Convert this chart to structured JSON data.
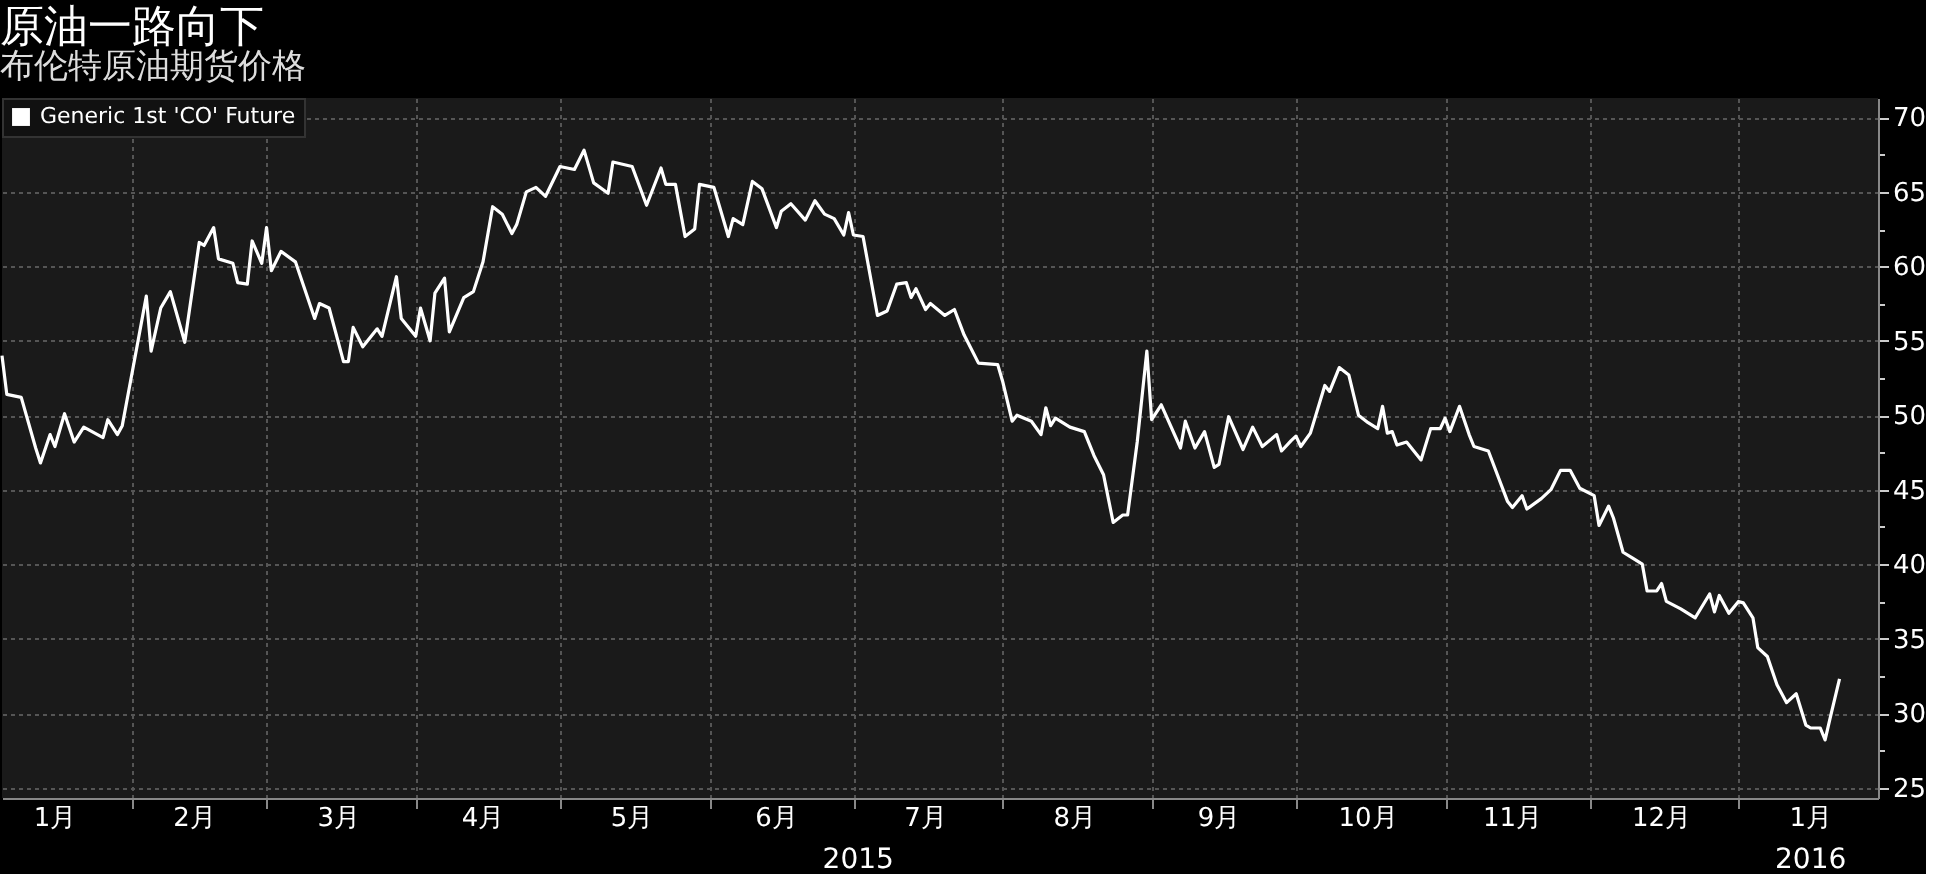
{
  "chart_data": {
    "type": "line",
    "title": "原油一路向下",
    "subtitle": "布伦特原油期货价格",
    "xlim": [
      "2015-01-05",
      "2016-01-30"
    ],
    "xticks": [
      {
        "value": "2015-02-01",
        "label": null
      },
      {
        "value": "2015-03-01",
        "label": null
      },
      {
        "value": "2015-04-01",
        "label": null
      },
      {
        "value": "2015-05-01",
        "label": null
      },
      {
        "value": "2015-06-01",
        "label": null
      },
      {
        "value": "2015-07-01",
        "label": null
      },
      {
        "value": "2015-08-01",
        "label": null
      },
      {
        "value": "2015-09-01",
        "label": null
      },
      {
        "value": "2015-10-01",
        "label": null
      },
      {
        "value": "2015-11-01",
        "label": null
      },
      {
        "value": "2015-12-01",
        "label": null
      },
      {
        "value": "2016-01-01",
        "label": null
      },
      {
        "value": "2015-01-16",
        "label": "1月"
      },
      {
        "value": "2015-02-14",
        "label": "2月"
      },
      {
        "value": "2015-03-16",
        "label": "3月"
      },
      {
        "value": "2015-04-15",
        "label": "4月"
      },
      {
        "value": "2015-05-16",
        "label": "5月"
      },
      {
        "value": "2015-06-15",
        "label": "6月"
      },
      {
        "value": "2015-07-16",
        "label": "7月"
      },
      {
        "value": "2015-08-16",
        "label": "8月"
      },
      {
        "value": "2015-09-15",
        "label": "9月"
      },
      {
        "value": "2015-10-16",
        "label": "10月"
      },
      {
        "value": "2015-11-15",
        "label": "11月"
      },
      {
        "value": "2015-12-16",
        "label": "12月"
      },
      {
        "value": "2016-01-16",
        "label": "1月"
      }
    ],
    "ylim": [
      24.3,
      71.3
    ],
    "yticks": [
      25,
      {
        "value": 27.5,
        "label": null
      },
      30,
      {
        "value": 32.5,
        "label": null
      },
      35,
      {
        "value": 37.5,
        "label": null
      },
      40,
      {
        "value": 42.5,
        "label": null
      },
      45,
      {
        "value": 47.5,
        "label": null
      },
      50,
      {
        "value": 52.5,
        "label": null
      },
      55,
      {
        "value": 57.5,
        "label": null
      },
      60,
      {
        "value": 62.5,
        "label": null
      },
      65,
      {
        "value": 67.5,
        "label": null
      },
      70
    ],
    "grid": true,
    "legend": "top left",
    "annotations": [
      "2015",
      "2016"
    ],
    "series": [
      {
        "name": "Generic 1st 'CO' Future",
        "color": "#ffffff",
        "x": [
          "2015-01-05",
          "2015-01-06",
          "2015-01-09",
          "2015-01-12",
          "2015-01-13",
          "2015-01-15",
          "2015-01-16",
          "2015-01-18",
          "2015-01-20",
          "2015-01-22",
          "2015-01-26",
          "2015-01-27",
          "2015-01-29",
          "2015-01-30",
          "2015-02-02",
          "2015-02-04",
          "2015-02-05",
          "2015-02-07",
          "2015-02-09",
          "2015-02-12",
          "2015-02-15",
          "2015-02-16",
          "2015-02-18",
          "2015-02-19",
          "2015-02-22",
          "2015-02-23",
          "2015-02-25",
          "2015-02-26",
          "2015-02-28",
          "2015-03-01",
          "2015-03-02",
          "2015-03-04",
          "2015-03-07",
          "2015-03-11",
          "2015-03-12",
          "2015-03-14",
          "2015-03-17",
          "2015-03-18",
          "2015-03-19",
          "2015-03-21",
          "2015-03-24",
          "2015-03-25",
          "2015-03-28",
          "2015-03-29",
          "2015-04-01",
          "2015-04-02",
          "2015-04-04",
          "2015-04-05",
          "2015-04-07",
          "2015-04-08",
          "2015-04-11",
          "2015-04-13",
          "2015-04-15",
          "2015-04-17",
          "2015-04-19",
          "2015-04-21",
          "2015-04-22",
          "2015-04-24",
          "2015-04-26",
          "2015-04-28",
          "2015-05-01",
          "2015-05-04",
          "2015-05-06",
          "2015-05-08",
          "2015-05-11",
          "2015-05-12",
          "2015-05-16",
          "2015-05-19",
          "2015-05-22",
          "2015-05-23",
          "2015-05-25",
          "2015-05-27",
          "2015-05-29",
          "2015-05-30",
          "2015-06-02",
          "2015-06-05",
          "2015-06-06",
          "2015-06-08",
          "2015-06-10",
          "2015-06-12",
          "2015-06-15",
          "2015-06-16",
          "2015-06-18",
          "2015-06-21",
          "2015-06-23",
          "2015-06-25",
          "2015-06-27",
          "2015-06-29",
          "2015-06-30",
          "2015-07-01",
          "2015-07-03",
          "2015-07-06",
          "2015-07-08",
          "2015-07-10",
          "2015-07-12",
          "2015-07-13",
          "2015-07-14",
          "2015-07-16",
          "2015-07-17",
          "2015-07-20",
          "2015-07-22",
          "2015-07-24",
          "2015-07-27",
          "2015-07-31",
          "2015-08-01",
          "2015-08-03",
          "2015-08-04",
          "2015-08-07",
          "2015-08-09",
          "2015-08-10",
          "2015-08-11",
          "2015-08-12",
          "2015-08-15",
          "2015-08-18",
          "2015-08-20",
          "2015-08-22",
          "2015-08-24",
          "2015-08-26",
          "2015-08-27",
          "2015-08-29",
          "2015-08-31",
          "2015-09-01",
          "2015-09-03",
          "2015-09-07",
          "2015-09-08",
          "2015-09-10",
          "2015-09-12",
          "2015-09-14",
          "2015-09-15",
          "2015-09-17",
          "2015-09-20",
          "2015-09-22",
          "2015-09-24",
          "2015-09-27",
          "2015-09-28",
          "2015-09-30",
          "2015-10-01",
          "2015-10-02",
          "2015-10-04",
          "2015-10-07",
          "2015-10-08",
          "2015-10-10",
          "2015-10-12",
          "2015-10-14",
          "2015-10-16",
          "2015-10-18",
          "2015-10-19",
          "2015-10-20",
          "2015-10-21",
          "2015-10-22",
          "2015-10-24",
          "2015-10-27",
          "2015-10-29",
          "2015-10-31",
          "2015-11-01",
          "2015-11-02",
          "2015-11-04",
          "2015-11-06",
          "2015-11-07",
          "2015-11-10",
          "2015-11-14",
          "2015-11-15",
          "2015-11-17",
          "2015-11-18",
          "2015-11-21",
          "2015-11-23",
          "2015-11-25",
          "2015-11-27",
          "2015-11-29",
          "2015-12-02",
          "2015-12-03",
          "2015-12-05",
          "2015-12-06",
          "2015-12-08",
          "2015-12-10",
          "2015-12-12",
          "2015-12-13",
          "2015-12-15",
          "2015-12-16",
          "2015-12-17",
          "2015-12-20",
          "2015-12-23",
          "2015-12-26",
          "2015-12-27",
          "2015-12-28",
          "2015-12-30",
          "2016-01-01",
          "2016-01-02",
          "2016-01-04",
          "2016-01-05",
          "2016-01-07",
          "2016-01-09",
          "2016-01-11",
          "2016-01-13",
          "2016-01-15",
          "2016-01-16",
          "2016-01-18",
          "2016-01-19",
          "2016-01-20",
          "2016-01-22"
        ],
        "values": [
          54.0,
          51.4,
          51.2,
          47.8,
          46.8,
          48.7,
          47.9,
          50.1,
          48.2,
          49.2,
          48.5,
          49.7,
          48.7,
          49.3,
          54.5,
          58.0,
          54.3,
          57.2,
          58.3,
          54.9,
          61.6,
          61.4,
          62.6,
          60.5,
          60.2,
          58.9,
          58.8,
          61.7,
          60.2,
          62.6,
          59.7,
          61.0,
          60.3,
          56.5,
          57.5,
          57.2,
          53.6,
          53.6,
          55.9,
          54.6,
          55.8,
          55.3,
          59.3,
          56.5,
          55.3,
          57.2,
          55.0,
          58.2,
          59.2,
          55.6,
          57.9,
          58.3,
          60.3,
          64.0,
          63.5,
          62.2,
          62.8,
          65.0,
          65.3,
          64.7,
          66.7,
          66.5,
          67.8,
          65.6,
          64.9,
          67.0,
          66.7,
          64.1,
          66.6,
          65.5,
          65.5,
          62.0,
          62.5,
          65.5,
          65.3,
          62.0,
          63.2,
          62.8,
          65.7,
          65.2,
          62.6,
          63.7,
          64.2,
          63.1,
          64.4,
          63.5,
          63.2,
          62.1,
          63.6,
          62.1,
          62.0,
          56.7,
          57.0,
          58.8,
          58.9,
          57.9,
          58.5,
          57.1,
          57.5,
          56.7,
          57.1,
          55.4,
          53.5,
          53.4,
          52.3,
          49.6,
          50.0,
          49.6,
          48.7,
          50.5,
          49.3,
          49.8,
          49.2,
          48.9,
          47.3,
          46.0,
          42.8,
          43.3,
          43.3,
          48.2,
          54.3,
          49.7,
          50.7,
          47.8,
          49.6,
          47.8,
          48.9,
          46.5,
          46.7,
          49.9,
          47.7,
          49.2,
          47.9,
          48.7,
          47.6,
          48.3,
          48.6,
          47.9,
          48.8,
          52.0,
          51.6,
          53.2,
          52.7,
          50.0,
          49.5,
          49.1,
          50.6,
          48.8,
          48.9,
          48.0,
          48.2,
          47.0,
          49.1,
          49.1,
          49.8,
          48.9,
          50.6,
          48.7,
          47.9,
          47.6,
          44.2,
          43.8,
          44.6,
          43.7,
          44.4,
          45.0,
          46.3,
          46.3,
          45.1,
          44.6,
          42.6,
          43.9,
          43.1,
          40.8,
          40.4,
          40.0,
          38.2,
          38.2,
          38.7,
          37.5,
          37.0,
          36.4,
          38.0,
          36.8,
          37.9,
          36.7,
          37.5,
          37.4,
          36.4,
          34.4,
          33.8,
          31.9,
          30.7,
          31.3,
          29.2,
          29.0,
          29.0,
          28.2,
          29.6,
          32.3
        ]
      }
    ]
  }
}
